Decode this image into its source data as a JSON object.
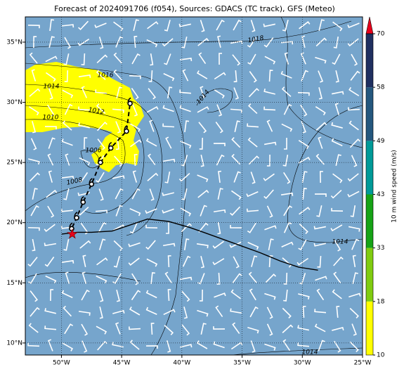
{
  "map": {
    "title": "Forecast of 2024091706 (f054), Sources: GDACS (TC track), GFS (Meteo)",
    "lon_lim": [
      -53,
      -25
    ],
    "lat_lim": [
      9,
      37.1
    ],
    "lon_ticks": [
      {
        "value": -50,
        "label": "50°W"
      },
      {
        "value": -45,
        "label": "45°W"
      },
      {
        "value": -40,
        "label": "40°W"
      },
      {
        "value": -35,
        "label": "35°W"
      },
      {
        "value": -30,
        "label": "30°W"
      },
      {
        "value": -25,
        "label": "25°W"
      }
    ],
    "lat_ticks": [
      {
        "value": 10,
        "label": "10°N"
      },
      {
        "value": 15,
        "label": "15°N"
      },
      {
        "value": 20,
        "label": "20°N"
      },
      {
        "value": 25,
        "label": "25°N"
      },
      {
        "value": 30,
        "label": "30°N"
      },
      {
        "value": 35,
        "label": "35°N"
      }
    ],
    "contour_labels": [
      1018,
      1016,
      1014,
      1012,
      1010,
      1006,
      1008,
      1014,
      1014,
      1014
    ],
    "current_position": {
      "lon": -49.1,
      "lat": 19.05
    },
    "forecast_track": {
      "lon": [
        -49.15,
        -48.74,
        -48.2,
        -47.5,
        -46.76,
        -45.9,
        -44.6,
        -44.3
      ],
      "lat": [
        19.5,
        20.4,
        21.7,
        23.2,
        25.0,
        26.2,
        27.6,
        29.9
      ]
    },
    "observed_track": {
      "lon": [
        -49.97,
        -48.7,
        -47.5,
        -45.8,
        -44.6,
        -42.85,
        -41.1,
        -39.35,
        -38.2,
        -35.85,
        -33.5,
        -31.8,
        -30.3,
        -28.7
      ],
      "lat": [
        19.05,
        19.2,
        19.2,
        19.3,
        19.7,
        20.3,
        20.1,
        19.6,
        19.2,
        18.35,
        17.5,
        16.8,
        16.3,
        16.05
      ]
    },
    "colorbar": {
      "label": "10 m wind speed (m/s)",
      "ticks": [
        10,
        18,
        33,
        43,
        49,
        58,
        70
      ],
      "colors": [
        "#ffff00",
        "#80cc10",
        "#16a316",
        "#009a98",
        "#24577e",
        "#1f2f60"
      ],
      "extend_color": "#e8001c"
    }
  }
}
